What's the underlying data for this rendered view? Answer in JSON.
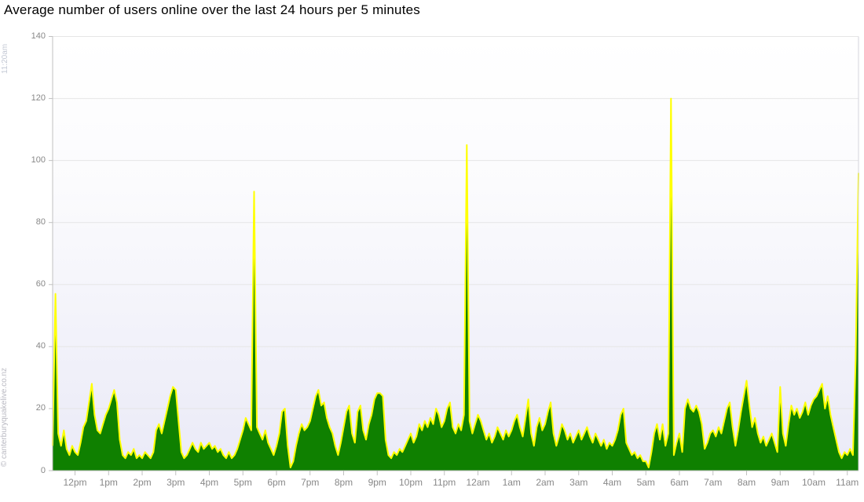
{
  "title": "Average number of users online over the last 24 hours per 5 minutes",
  "watermarks": {
    "timestamp": "11:20am",
    "credit": "© canterburyquakelive.co.nz"
  },
  "chart_data": {
    "type": "area",
    "title": "Average number of users online over the last 24 hours per 5 minutes",
    "xlabel": "",
    "ylabel": "",
    "legend": "none",
    "grid": "horizontal",
    "ylim": [
      0,
      140
    ],
    "y_ticks": [
      0,
      20,
      40,
      60,
      80,
      100,
      120,
      140
    ],
    "x_tick_labels": [
      "12pm",
      "1pm",
      "2pm",
      "3pm",
      "4pm",
      "5pm",
      "6pm",
      "7pm",
      "8pm",
      "9pm",
      "10pm",
      "11pm",
      "12am",
      "1am",
      "2am",
      "3am",
      "4am",
      "5am",
      "6am",
      "7am",
      "8am",
      "9am",
      "10am",
      "11am"
    ],
    "start_label": "11:20am",
    "interval_minutes": 5,
    "notable_peaks": [
      {
        "time": "5:20pm",
        "value": 90
      },
      {
        "time": "11:40pm",
        "value": 105
      },
      {
        "time": "5:45am",
        "value": 120
      },
      {
        "time": "11:20am",
        "value": 96
      }
    ],
    "colors": {
      "line": "#ffff00",
      "fill": "#0f8000",
      "grid": "#e6e6e6",
      "axis": "#c0c0c0",
      "label": "#888888"
    },
    "series": [
      {
        "name": "users online",
        "values": [
          8,
          57,
          12,
          8,
          13,
          7,
          5,
          8,
          6,
          5,
          9,
          14,
          16,
          22,
          28,
          18,
          13,
          12,
          15,
          18,
          20,
          23,
          26,
          22,
          10,
          5,
          4,
          6,
          5,
          7,
          4,
          5,
          4,
          6,
          5,
          4,
          6,
          13,
          15,
          12,
          16,
          20,
          24,
          27,
          26,
          16,
          6,
          4,
          5,
          7,
          9,
          7,
          6,
          9,
          7,
          8,
          9,
          7,
          8,
          6,
          7,
          5,
          4,
          6,
          4,
          5,
          7,
          10,
          13,
          17,
          15,
          13,
          90,
          14,
          12,
          10,
          13,
          9,
          7,
          5,
          8,
          12,
          19,
          20,
          8,
          1,
          3,
          8,
          12,
          15,
          13,
          14,
          16,
          20,
          24,
          26,
          21,
          22,
          17,
          14,
          12,
          8,
          5,
          9,
          14,
          19,
          21,
          12,
          9,
          19,
          21,
          13,
          10,
          15,
          18,
          23,
          25,
          25,
          24,
          10,
          5,
          4,
          6,
          5,
          7,
          6,
          8,
          10,
          12,
          9,
          11,
          15,
          13,
          16,
          14,
          17,
          15,
          20,
          18,
          14,
          16,
          20,
          22,
          14,
          12,
          15,
          13,
          18,
          105,
          16,
          12,
          15,
          18,
          16,
          13,
          10,
          12,
          9,
          11,
          14,
          12,
          10,
          13,
          11,
          13,
          16,
          18,
          14,
          11,
          17,
          23,
          12,
          8,
          14,
          17,
          13,
          15,
          19,
          22,
          12,
          8,
          11,
          15,
          13,
          10,
          12,
          9,
          11,
          13,
          10,
          12,
          14,
          11,
          9,
          12,
          10,
          8,
          10,
          7,
          9,
          8,
          10,
          13,
          18,
          20,
          9,
          7,
          5,
          6,
          4,
          5,
          3,
          3,
          1,
          6,
          12,
          15,
          10,
          15,
          8,
          12,
          120,
          5,
          9,
          12,
          6,
          20,
          23,
          20,
          19,
          21,
          19,
          15,
          7,
          9,
          12,
          13,
          11,
          14,
          12,
          16,
          20,
          22,
          14,
          8,
          13,
          19,
          24,
          29,
          21,
          14,
          17,
          12,
          9,
          11,
          8,
          10,
          12,
          9,
          6,
          27,
          12,
          8,
          15,
          21,
          18,
          20,
          17,
          19,
          22,
          18,
          21,
          23,
          24,
          26,
          28,
          20,
          24,
          18,
          14,
          10,
          6,
          4,
          6,
          5,
          7,
          5,
          36,
          96
        ]
      }
    ]
  }
}
